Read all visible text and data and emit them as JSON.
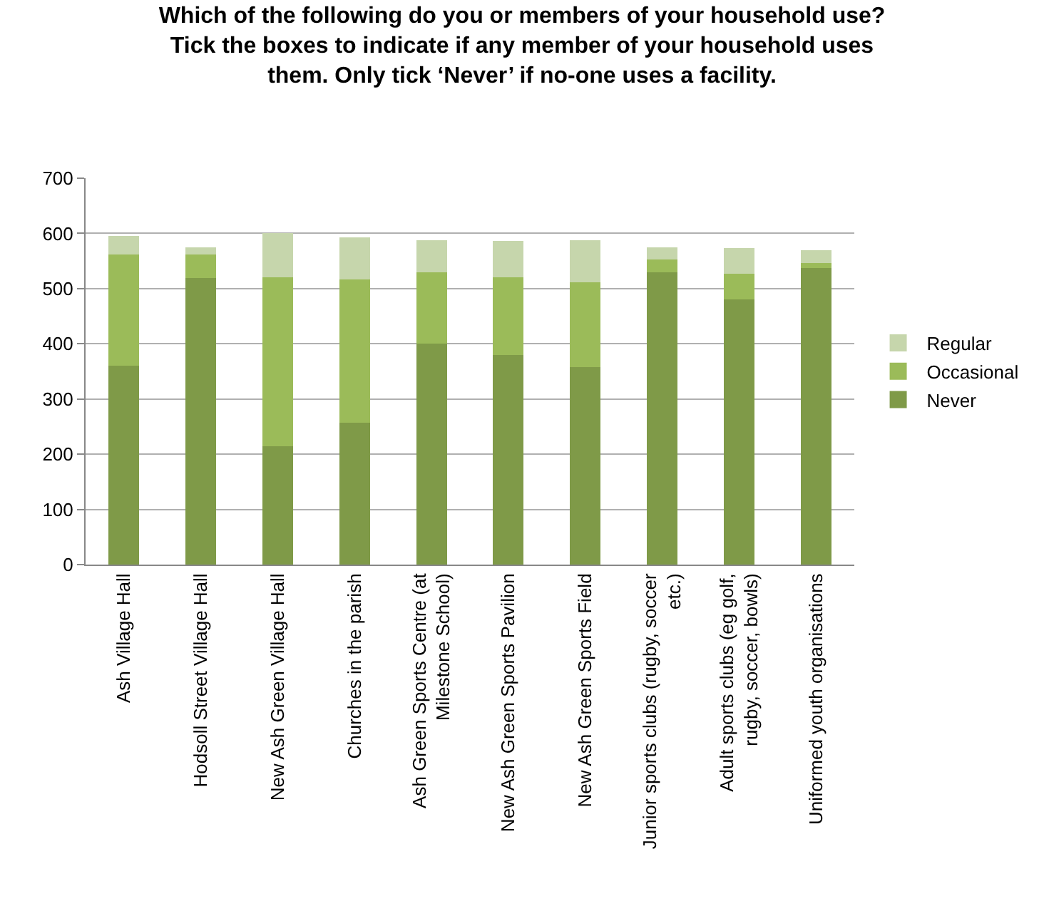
{
  "chart_data": {
    "type": "bar",
    "stacked": true,
    "title": "Which of the following do you or members of your household use?\nTick the boxes to indicate if any member of your household uses\nthem. Only tick ‘Never’ if no-one uses a facility.",
    "categories": [
      "Ash Village Hall",
      "Hodsoll Street Village Hall",
      "New Ash Green Village Hall",
      "Churches in the parish",
      "Ash Green Sports Centre (at Milestone School)",
      "New Ash Green Sports Pavilion",
      "New Ash Green Sports Field",
      "Junior sports clubs (rugby, soccer etc.)",
      "Adult sports clubs (eg golf,  rugby, soccer, bowls)",
      "Uniformed youth organisations"
    ],
    "series": [
      {
        "name": "Never",
        "color": "#7f9a48",
        "values": [
          360,
          519,
          214,
          257,
          401,
          380,
          358,
          530,
          480,
          537
        ]
      },
      {
        "name": "Occasional",
        "color": "#9bbb59",
        "values": [
          202,
          43,
          307,
          259,
          129,
          141,
          153,
          23,
          47,
          9
        ]
      },
      {
        "name": "Regular",
        "color": "#c6d6ac",
        "values": [
          33,
          13,
          79,
          77,
          58,
          65,
          77,
          22,
          46,
          23
        ]
      }
    ],
    "ylim": [
      0,
      700
    ],
    "yticks": [
      0,
      100,
      200,
      300,
      400,
      500,
      600,
      700
    ],
    "grid": "y",
    "legend": "right"
  }
}
